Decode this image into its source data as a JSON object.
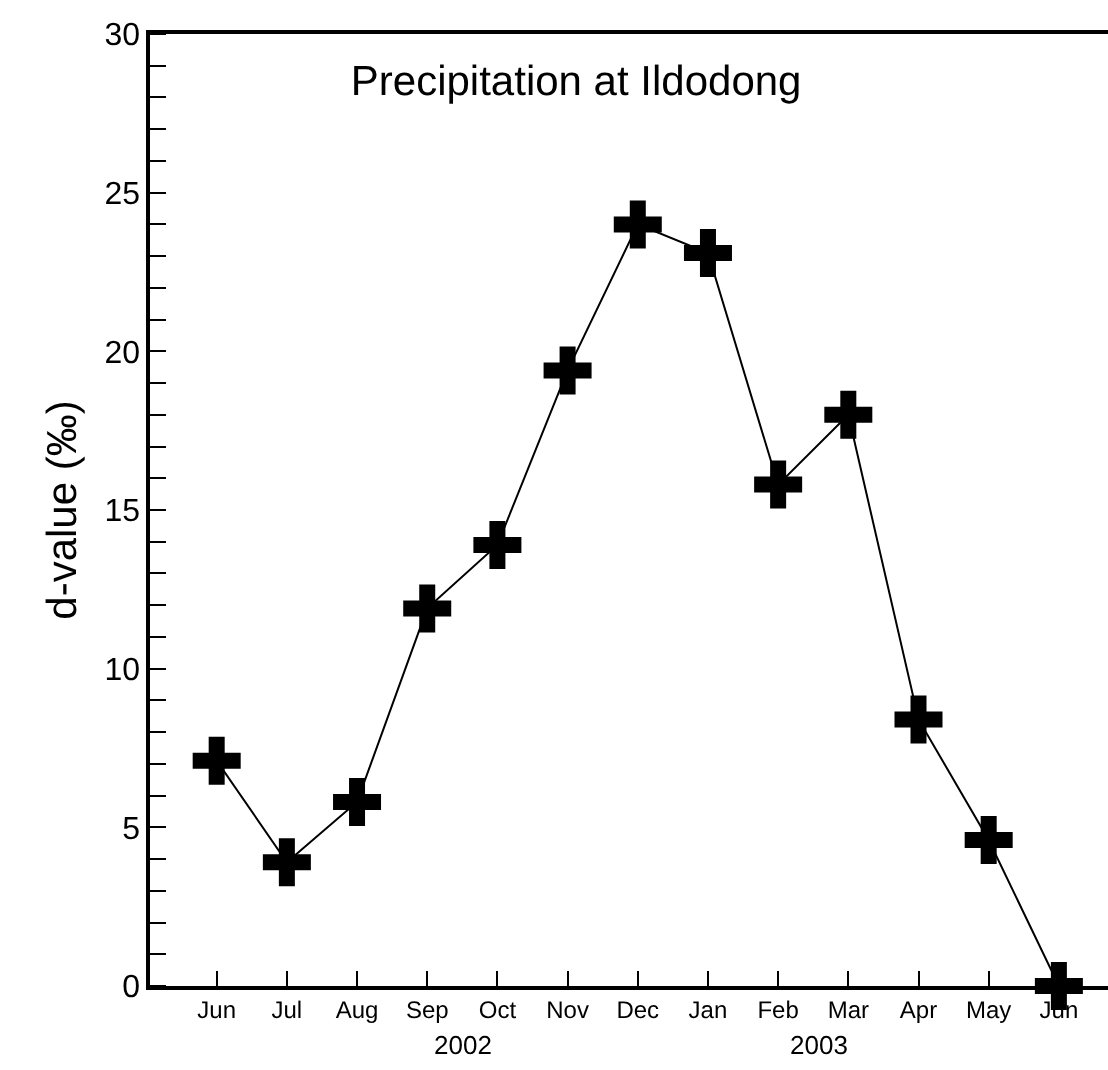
{
  "chart_data": {
    "type": "line",
    "title": "Precipitation at Ildodong",
    "ylabel": "d-value (‰)",
    "categories": [
      "Jun",
      "Jul",
      "Aug",
      "Sep",
      "Oct",
      "Nov",
      "Dec",
      "Jan",
      "Feb",
      "Mar",
      "Apr",
      "May",
      "Jun"
    ],
    "series": [
      {
        "color": "#000000",
        "values": [
          7.1,
          3.9,
          5.8,
          11.9,
          13.9,
          19.4,
          24.0,
          23.1,
          15.8,
          18.0,
          8.4,
          4.6,
          0.0
        ]
      }
    ],
    "ylim": [
      0,
      30
    ],
    "yticks": [
      0,
      5,
      10,
      15,
      20,
      25,
      30
    ],
    "annotations": [
      "2002",
      "2003"
    ],
    "marker": "cross",
    "line_style": "solid",
    "legend": false
  }
}
